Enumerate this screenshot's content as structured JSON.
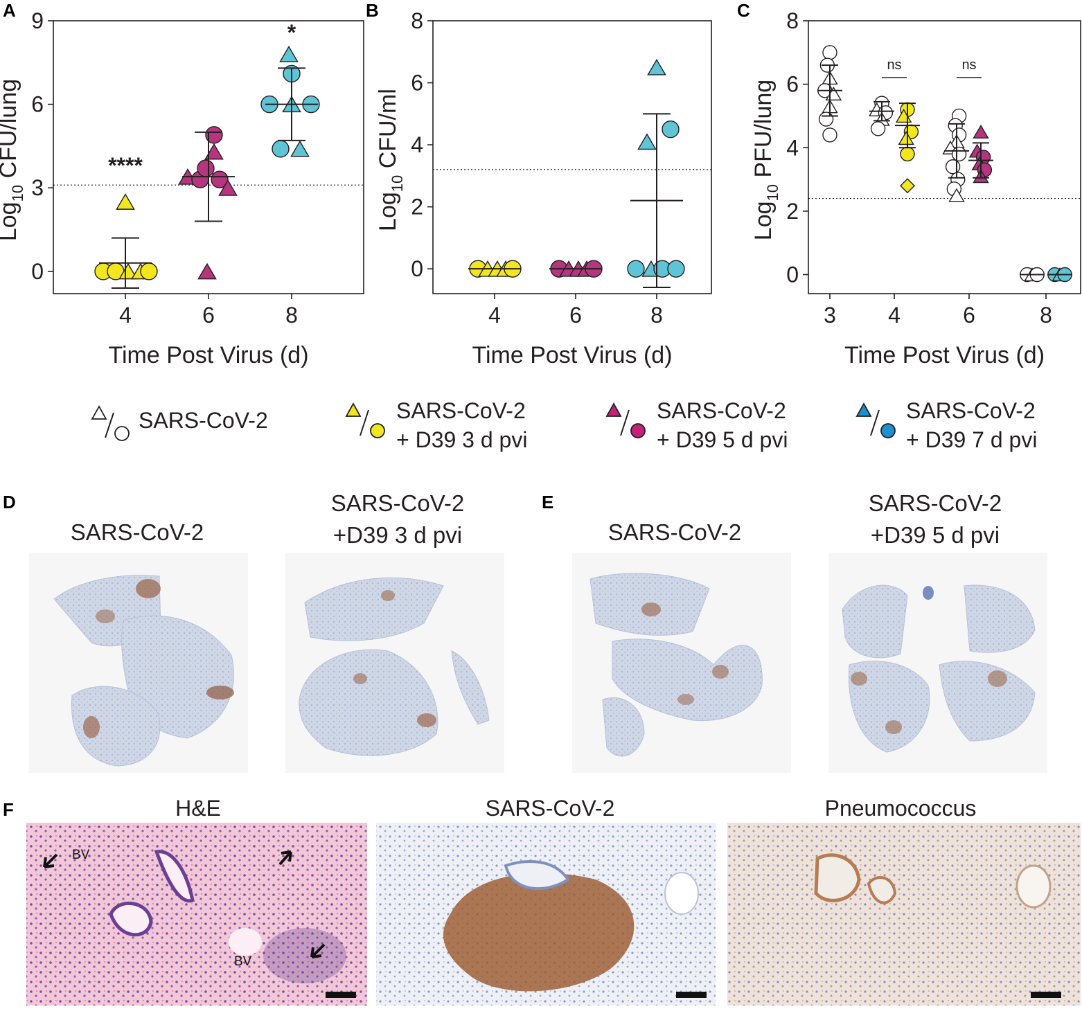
{
  "panel_labels": {
    "a": "A",
    "b": "B",
    "c": "C",
    "d": "D",
    "e": "E",
    "f": "F"
  },
  "colors": {
    "yellow": "#f2e61e",
    "magenta": "#b5367f",
    "cyan": "#5fc4d6",
    "open": "#ffffff",
    "stroke": "#231f20"
  },
  "chart_data": [
    {
      "id": "A",
      "type": "scatter",
      "ylabel_main": "Log",
      "ylabel_sub": "10",
      "ylabel_rest": " CFU/lung",
      "xlabel": "Time Post Virus (d)",
      "x_ticks": [
        "4",
        "6",
        "8"
      ],
      "y_ticks": [
        "0",
        "3",
        "6",
        "9"
      ],
      "ylim": [
        -0.8,
        9
      ],
      "limit_of_detection": 3.1,
      "groups": [
        {
          "x": "4",
          "color": "yellow",
          "mean": 0.3,
          "sd": 0.9,
          "significance": "****",
          "points": [
            {
              "s": "tri",
              "v": 2.5,
              "o": 0
            },
            {
              "s": "cir",
              "v": 0,
              "o": -32
            },
            {
              "s": "cir",
              "v": 0,
              "o": -14
            },
            {
              "s": "tri",
              "v": 0,
              "o": 4
            },
            {
              "s": "tri",
              "v": 0,
              "o": 22
            },
            {
              "s": "cir",
              "v": 0,
              "o": 34
            }
          ]
        },
        {
          "x": "6",
          "color": "magenta",
          "mean": 3.4,
          "sd": 1.6,
          "points": [
            {
              "s": "cir",
              "v": 4.9,
              "o": 8
            },
            {
              "s": "tri",
              "v": 4.3,
              "o": 8
            },
            {
              "s": "tri",
              "v": 3.4,
              "o": -30
            },
            {
              "s": "cir",
              "v": 3.3,
              "o": -12
            },
            {
              "s": "cir",
              "v": 3.3,
              "o": 16
            },
            {
              "s": "tri",
              "v": 3.0,
              "o": 28
            },
            {
              "s": "cir",
              "v": 3.7,
              "o": -4
            },
            {
              "s": "tri",
              "v": 0,
              "o": -2
            }
          ]
        },
        {
          "x": "8",
          "color": "cyan",
          "mean": 6.0,
          "sd": 1.3,
          "significance": "*",
          "points": [
            {
              "s": "tri",
              "v": 7.8,
              "o": -4
            },
            {
              "s": "cir",
              "v": 7.1,
              "o": 0
            },
            {
              "s": "cir",
              "v": 6.0,
              "o": -32
            },
            {
              "s": "tri",
              "v": 6.0,
              "o": 0
            },
            {
              "s": "cir",
              "v": 6.0,
              "o": 28
            },
            {
              "s": "cir",
              "v": 4.4,
              "o": -16
            },
            {
              "s": "tri",
              "v": 4.4,
              "o": 12
            }
          ]
        }
      ]
    },
    {
      "id": "B",
      "type": "scatter",
      "ylabel_main": "Log",
      "ylabel_sub": "10",
      "ylabel_rest": " CFU/ml",
      "xlabel": "Time Post Virus (d)",
      "x_ticks": [
        "4",
        "6",
        "8"
      ],
      "y_ticks": [
        "0",
        "2",
        "4",
        "6",
        "8"
      ],
      "ylim": [
        -0.8,
        8
      ],
      "limit_of_detection": 3.2,
      "groups": [
        {
          "x": "4",
          "color": "yellow",
          "mean": 0,
          "sd": 0,
          "points": [
            {
              "s": "cir",
              "v": 0,
              "o": -24
            },
            {
              "s": "tri",
              "v": 0,
              "o": -10
            },
            {
              "s": "tri",
              "v": 0,
              "o": 4
            },
            {
              "s": "tri",
              "v": 0,
              "o": 16
            },
            {
              "s": "cir",
              "v": 0,
              "o": 26
            }
          ]
        },
        {
          "x": "6",
          "color": "magenta",
          "mean": 0,
          "sd": 0,
          "points": [
            {
              "s": "cir",
              "v": 0,
              "o": -24
            },
            {
              "s": "tri",
              "v": 0,
              "o": -10
            },
            {
              "s": "tri",
              "v": 0,
              "o": 4
            },
            {
              "s": "tri",
              "v": 0,
              "o": 16
            },
            {
              "s": "cir",
              "v": 0,
              "o": 26
            }
          ]
        },
        {
          "x": "8",
          "color": "cyan",
          "mean": 2.2,
          "sd": 2.8,
          "points": [
            {
              "s": "tri",
              "v": 6.5,
              "o": 0
            },
            {
              "s": "cir",
              "v": 4.5,
              "o": 20
            },
            {
              "s": "tri",
              "v": 4.1,
              "o": -14
            },
            {
              "s": "cir",
              "v": 0,
              "o": -30
            },
            {
              "s": "tri",
              "v": 0,
              "o": -8
            },
            {
              "s": "cir",
              "v": 0,
              "o": 8
            },
            {
              "s": "cir",
              "v": 0,
              "o": 28
            }
          ]
        }
      ]
    },
    {
      "id": "C",
      "type": "scatter",
      "ylabel_main": "Log",
      "ylabel_sub": "10",
      "ylabel_rest": " PFU/lung",
      "xlabel": "Time Post Virus (d)",
      "x_ticks": [
        "3",
        "4",
        "6",
        "8"
      ],
      "y_ticks": [
        "0",
        "2",
        "4",
        "6",
        "8"
      ],
      "ylim": [
        -0.6,
        8
      ],
      "limit_of_detection": 2.4,
      "ns_labels": [
        "ns",
        "ns"
      ],
      "groups": [
        {
          "x": "3",
          "color": "open",
          "mean": 5.8,
          "sd": 0.8,
          "points": [
            {
              "s": "cir",
              "v": 7.0,
              "o": 0
            },
            {
              "s": "cir",
              "v": 6.6,
              "o": -4
            },
            {
              "s": "tri",
              "v": 6.2,
              "o": 0
            },
            {
              "s": "cir",
              "v": 5.8,
              "o": -8
            },
            {
              "s": "tri",
              "v": 5.7,
              "o": 6
            },
            {
              "s": "tri",
              "v": 5.3,
              "o": 0
            },
            {
              "s": "cir",
              "v": 4.9,
              "o": -6
            },
            {
              "s": "cir",
              "v": 4.4,
              "o": 0
            }
          ]
        },
        {
          "x": "4",
          "color": "open",
          "mean": 5.15,
          "sd": 0.3,
          "points": [
            {
              "s": "cir",
              "v": 5.4,
              "o": 0
            },
            {
              "s": "tri",
              "v": 5.2,
              "o": -8
            },
            {
              "s": "cir",
              "v": 5.1,
              "o": 6
            },
            {
              "s": "tri",
              "v": 4.9,
              "o": 0
            },
            {
              "s": "cir",
              "v": 4.6,
              "o": -6
            }
          ]
        },
        {
          "x": "4",
          "color": "yellow",
          "mean": 4.7,
          "sd": 0.7,
          "points": [
            {
              "s": "cir",
              "v": 5.2,
              "o": 0
            },
            {
              "s": "tri",
              "v": 5.0,
              "o": -6
            },
            {
              "s": "cir",
              "v": 4.5,
              "o": 6
            },
            {
              "s": "tri",
              "v": 4.3,
              "o": -2
            },
            {
              "s": "cir",
              "v": 3.8,
              "o": 0
            },
            {
              "s": "dia",
              "v": 2.8,
              "o": 0
            }
          ]
        },
        {
          "x": "6",
          "color": "open",
          "mean": 3.9,
          "sd": 0.85,
          "points": [
            {
              "s": "cir",
              "v": 5.0,
              "o": 4
            },
            {
              "s": "cir",
              "v": 4.7,
              "o": -2
            },
            {
              "s": "cir",
              "v": 4.4,
              "o": 4
            },
            {
              "s": "tri",
              "v": 4.2,
              "o": 0
            },
            {
              "s": "tri",
              "v": 4.0,
              "o": -10
            },
            {
              "s": "cir",
              "v": 3.8,
              "o": 4
            },
            {
              "s": "cir",
              "v": 3.4,
              "o": -6
            },
            {
              "s": "cir",
              "v": 3.0,
              "o": 2
            },
            {
              "s": "cir",
              "v": 2.7,
              "o": -4
            },
            {
              "s": "tri",
              "v": 2.5,
              "o": 0
            }
          ]
        },
        {
          "x": "6",
          "color": "magenta",
          "mean": 3.6,
          "sd": 0.55,
          "points": [
            {
              "s": "tri",
              "v": 4.5,
              "o": 0
            },
            {
              "s": "tri",
              "v": 3.9,
              "o": -6
            },
            {
              "s": "cir",
              "v": 3.7,
              "o": 4
            },
            {
              "s": "tri",
              "v": 3.5,
              "o": -2
            },
            {
              "s": "cir",
              "v": 3.3,
              "o": 6
            },
            {
              "s": "tri",
              "v": 3.1,
              "o": 0
            }
          ]
        },
        {
          "x": "8",
          "color": "open",
          "mean": 0,
          "sd": 0,
          "points": [
            {
              "s": "cir",
              "v": 0,
              "o": -8
            },
            {
              "s": "tri",
              "v": 0,
              "o": 0
            },
            {
              "s": "cir",
              "v": 0,
              "o": 8
            }
          ]
        },
        {
          "x": "8",
          "color": "cyan",
          "mean": 0,
          "sd": 0,
          "points": [
            {
              "s": "cir",
              "v": 0,
              "o": -8
            },
            {
              "s": "tri",
              "v": 0,
              "o": 0
            },
            {
              "s": "cir",
              "v": 0,
              "o": 8
            }
          ]
        }
      ]
    }
  ],
  "legend": [
    {
      "color": "open",
      "line1": "SARS-CoV-2",
      "line2": ""
    },
    {
      "color": "yellow",
      "line1": "SARS-CoV-2",
      "line2": "+ D39 3 d pvi"
    },
    {
      "color": "magenta",
      "line1": "SARS-CoV-2",
      "line2": "+ D39 5 d pvi"
    },
    {
      "color": "cyan",
      "line1": "SARS-CoV-2",
      "line2": "+ D39 7 d pvi"
    }
  ],
  "panel_d": {
    "left_title": "SARS-CoV-2",
    "right_title_1": "SARS-CoV-2",
    "right_title_2": "+D39 3 d pvi"
  },
  "panel_e": {
    "left_title": "SARS-CoV-2",
    "right_title_1": "SARS-CoV-2",
    "right_title_2": "+D39 5 d pvi"
  },
  "panel_f": {
    "titles": [
      "H&E",
      "SARS-CoV-2",
      "Pneumococcus"
    ],
    "bv_label": "BV"
  }
}
